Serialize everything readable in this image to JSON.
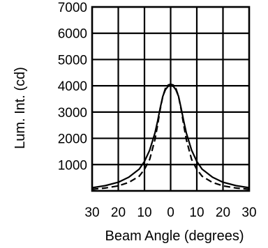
{
  "chart_data": {
    "type": "line",
    "title": "",
    "xlabel": "Beam Angle (degrees)",
    "ylabel": "Lum. Int. (cd)",
    "xlim": [
      -30,
      30
    ],
    "ylim": [
      0,
      7000
    ],
    "x_ticks": [
      -30,
      -20,
      -10,
      0,
      10,
      20,
      30
    ],
    "x_tick_labels": [
      "30",
      "20",
      "10",
      "0",
      "10",
      "20",
      "30"
    ],
    "y_ticks": [
      1000,
      2000,
      3000,
      4000,
      5000,
      6000,
      7000
    ],
    "y_tick_labels": [
      "1000",
      "2000",
      "3000",
      "4000",
      "5000",
      "6000",
      "7000"
    ],
    "grid": true,
    "series": [
      {
        "style": "solid",
        "x": [
          -30,
          -25,
          -20,
          -16,
          -12,
          -10,
          -8,
          -6,
          -5,
          -4,
          -3,
          -2,
          -1,
          0,
          1,
          2,
          3,
          4,
          5,
          6,
          8,
          10,
          12,
          16,
          20,
          25,
          30
        ],
        "values": [
          120,
          200,
          330,
          520,
          830,
          1120,
          1550,
          2200,
          2650,
          3150,
          3600,
          3850,
          3980,
          4000,
          3980,
          3850,
          3600,
          3150,
          2650,
          2200,
          1550,
          1120,
          830,
          520,
          330,
          200,
          120
        ]
      },
      {
        "style": "dashed",
        "x": [
          -30,
          -25,
          -20,
          -16,
          -12,
          -10,
          -8,
          -6,
          -5,
          -4,
          -3,
          -2,
          -1,
          0,
          1,
          2,
          3,
          4,
          5,
          6,
          8,
          10,
          12,
          16,
          20,
          25,
          30
        ],
        "values": [
          60,
          110,
          190,
          320,
          560,
          820,
          1200,
          1950,
          2500,
          3100,
          3600,
          3900,
          4030,
          4060,
          4030,
          3900,
          3600,
          3100,
          2500,
          1950,
          1200,
          820,
          560,
          320,
          190,
          110,
          60
        ]
      }
    ]
  }
}
